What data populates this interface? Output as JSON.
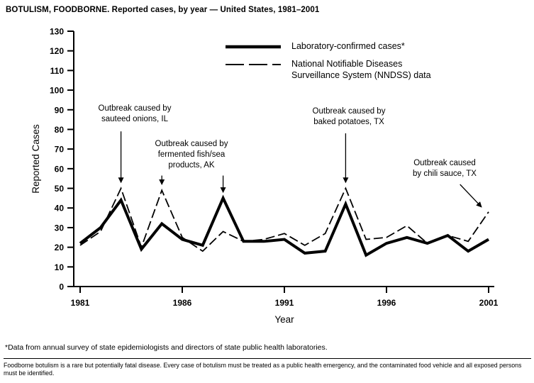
{
  "title": "BOTULISM, FOODBORNE. Reported cases, by year — United States, 1981–2001",
  "footnote": "*Data from annual survey of state epidemiologists and directors of state public health laboratories.",
  "bottom_note": "Foodborne botulism is a rare but potentially fatal disease. Every case of botulism must be treated as a public health emergency, and the contaminated food vehicle and all exposed persons must be identified.",
  "colors": {
    "line": "#000000",
    "background": "#ffffff"
  },
  "chart_data": {
    "type": "line",
    "title": "BOTULISM, FOODBORNE. Reported cases, by year — United States, 1981–2001",
    "xlabel": "Year",
    "ylabel": "Reported Cases",
    "xlim": [
      1981,
      2001
    ],
    "ylim": [
      0,
      130
    ],
    "y_tick_step": 10,
    "x_ticks": [
      1981,
      1986,
      1991,
      1996,
      2001
    ],
    "grid": false,
    "legend_position": "top-inside",
    "x": [
      1981,
      1982,
      1983,
      1984,
      1985,
      1986,
      1987,
      1988,
      1989,
      1990,
      1991,
      1992,
      1993,
      1994,
      1995,
      1996,
      1997,
      1998,
      1999,
      2000,
      2001
    ],
    "series": [
      {
        "name": "Laboratory-confirmed cases*",
        "style": "solid-thick",
        "values": [
          22,
          30,
          44,
          19,
          32,
          24,
          21,
          45,
          23,
          23,
          24,
          17,
          18,
          42,
          16,
          22,
          25,
          22,
          26,
          18,
          24
        ]
      },
      {
        "name": "National Notifiable Diseases\nSurveillance System (NNDSS) data",
        "style": "dashed",
        "values": [
          21,
          28,
          50,
          20,
          49,
          25,
          18,
          28,
          23,
          24,
          27,
          21,
          27,
          50,
          24,
          25,
          31,
          22,
          26,
          23,
          38
        ]
      }
    ],
    "annotations": [
      {
        "text": "Outbreak caused by\nsauteed onions, IL",
        "arrows": [
          {
            "x_from": 1983,
            "y_from": 79,
            "x_to": 1983,
            "y_to": 53
          }
        ]
      },
      {
        "text": "Outbreak caused by\nfermented fish/sea\nproducts, AK",
        "arrows": [
          {
            "x_from": 1985,
            "y_from": 56.5,
            "x_to": 1985,
            "y_to": 52
          },
          {
            "x_from": 1988,
            "y_from": 56.5,
            "x_to": 1988,
            "y_to": 48
          }
        ]
      },
      {
        "text": "Outbreak caused by\nbaked potatoes, TX",
        "arrows": [
          {
            "x_from": 1994,
            "y_from": 78,
            "x_to": 1994,
            "y_to": 53
          }
        ]
      },
      {
        "text": "Outbreak caused\nby chili sauce, TX",
        "arrows": [
          {
            "x_from": 1999.6,
            "y_from": 52,
            "x_to": 2000.65,
            "y_to": 40.5
          }
        ]
      }
    ]
  }
}
